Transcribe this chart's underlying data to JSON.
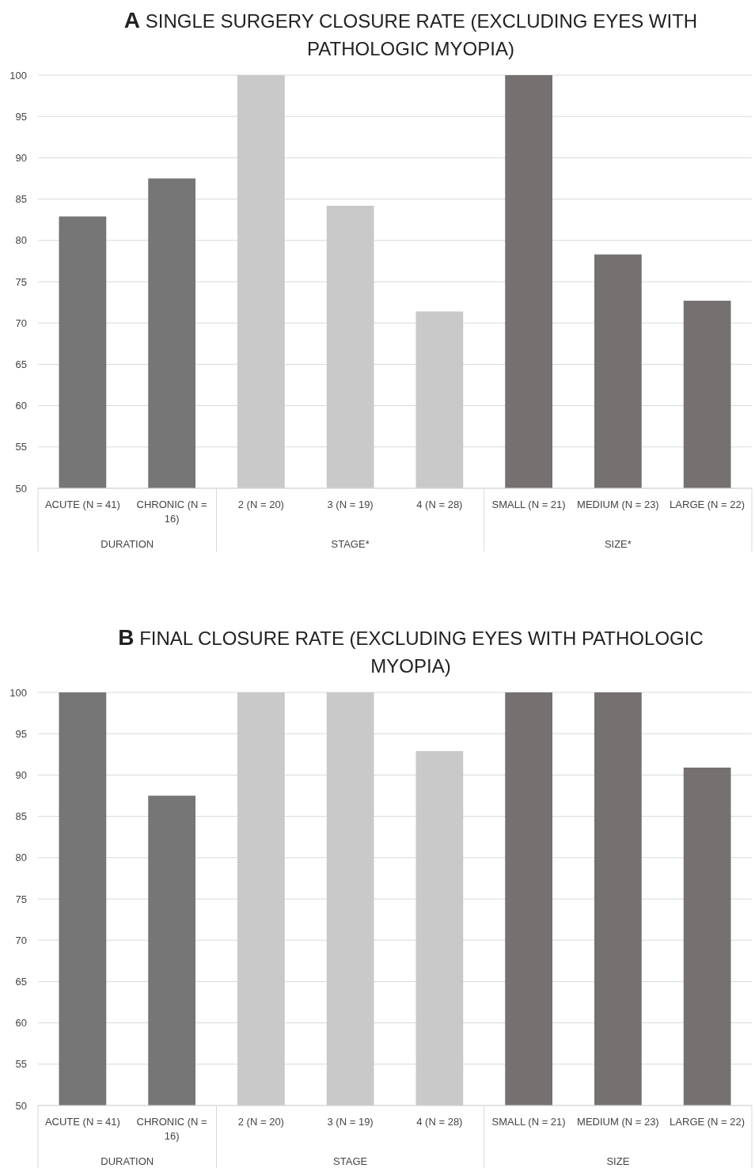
{
  "chart_data": [
    {
      "type": "bar",
      "title": "A SINGLE SURGERY CLOSURE RATE (EXCLUDING EYES WITH PATHOLOGIC MYOPIA)",
      "categories": [
        "ACUTE (N = 41)",
        "CHRONIC (N = 16)",
        "2 (N = 20)",
        "3 (N = 19)",
        "4 (N = 28)",
        "SMALL (N = 21)",
        "MEDIUM (N = 23)",
        "LARGE (N = 22)"
      ],
      "values": [
        82.9,
        87.5,
        100,
        84.2,
        71.4,
        100,
        78.3,
        72.7
      ],
      "colors": [
        "#767676",
        "#767676",
        "#c9c9c9",
        "#c9c9c9",
        "#c9c9c9",
        "#767171",
        "#767171",
        "#767171"
      ],
      "ylim": [
        50,
        100
      ],
      "yticks": [
        50,
        55,
        60,
        65,
        70,
        75,
        80,
        85,
        90,
        95,
        100
      ],
      "grid": "y",
      "annotations": [
        "DURATION",
        "STAGE*",
        "SIZE*"
      ]
    },
    {
      "type": "bar",
      "title": "B FINAL CLOSURE RATE (EXCLUDING EYES WITH PATHOLOGIC MYOPIA)",
      "categories": [
        "ACUTE (N = 41)",
        "CHRONIC (N = 16)",
        "2 (N = 20)",
        "3 (N = 19)",
        "4 (N = 28)",
        "SMALL (N = 21)",
        "MEDIUM (N = 23)",
        "LARGE (N = 22)"
      ],
      "values": [
        100,
        87.5,
        100,
        100,
        92.9,
        100,
        100,
        90.9
      ],
      "colors": [
        "#767676",
        "#767676",
        "#c9c9c9",
        "#c9c9c9",
        "#c9c9c9",
        "#767171",
        "#767171",
        "#767171"
      ],
      "ylim": [
        50,
        100
      ],
      "yticks": [
        50,
        55,
        60,
        65,
        70,
        75,
        80,
        85,
        90,
        95,
        100
      ],
      "grid": "y",
      "annotations": [
        "DURATION",
        "STAGE",
        "SIZE"
      ]
    }
  ]
}
